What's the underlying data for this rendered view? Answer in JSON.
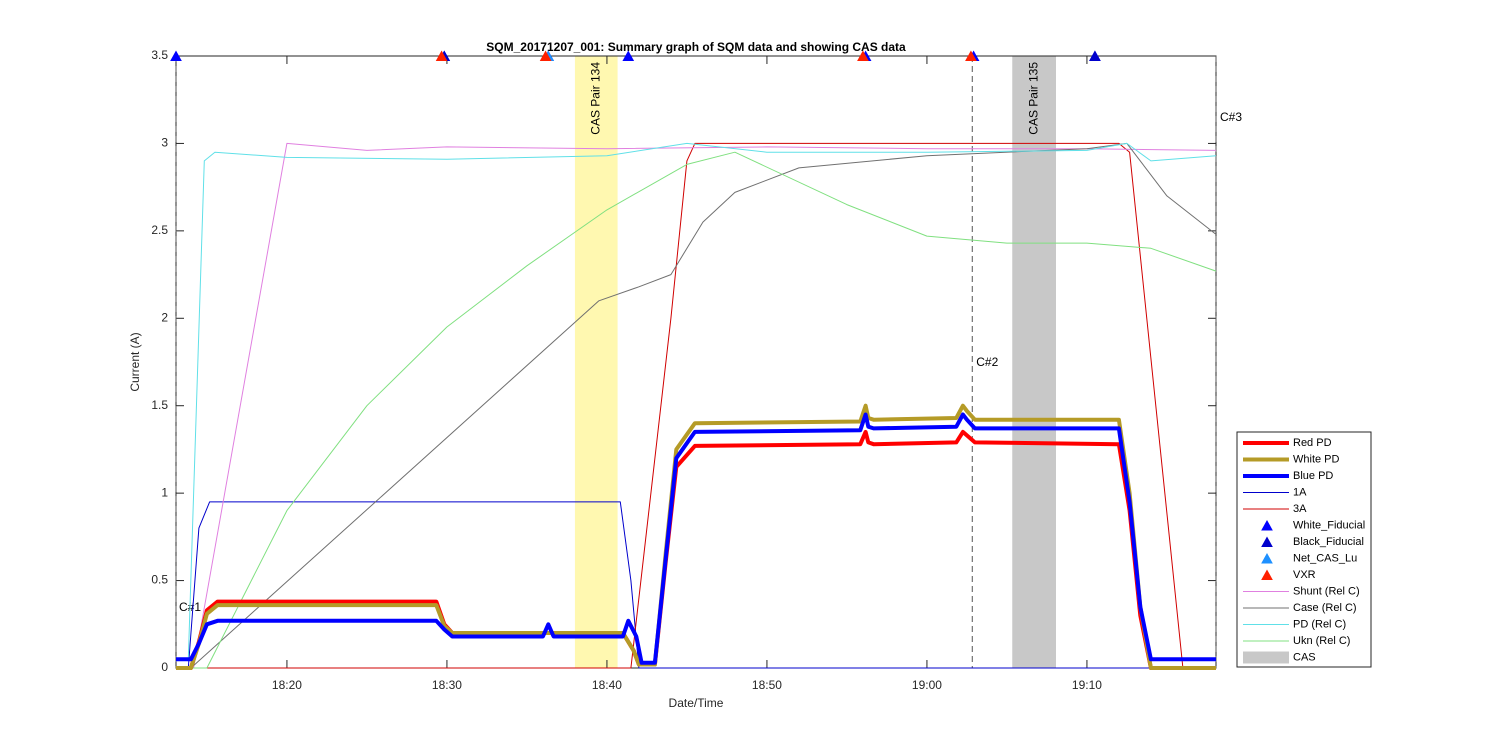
{
  "chart_data": {
    "type": "line",
    "title": "SQM_20171207_001: Summary graph of SQM data and showing CAS data",
    "x_label": "Date/Time",
    "y_label": "Current (A)",
    "xlim": [
      "18:13:04",
      "19:18:04"
    ],
    "xticks": [
      "18:20",
      "18:30",
      "18:40",
      "18:50",
      "19:00",
      "19:10"
    ],
    "ylim": [
      0,
      3.5
    ],
    "yticks": [
      0,
      0.5,
      1,
      1.5,
      2,
      2.5,
      3,
      3.5
    ],
    "series": [
      {
        "name": "Red PD",
        "color": "#ff0000",
        "width": 4,
        "x": [
          "18:13:04",
          "18:14:00",
          "18:14:30",
          "18:15:00",
          "18:15:40",
          "18:29:20",
          "18:29:50",
          "18:30:20",
          "18:41:00",
          "18:41:40",
          "18:42:00",
          "18:43:00",
          "18:43:40",
          "18:44:20",
          "18:45:30",
          "18:55:50",
          "18:56:10",
          "18:56:20",
          "18:56:40",
          "19:01:50",
          "19:02:15",
          "19:02:30",
          "19:03:00",
          "19:12:00",
          "19:12:40",
          "19:13:20",
          "19:14:00",
          "19:18:04"
        ],
        "values": [
          0,
          0,
          0.15,
          0.33,
          0.38,
          0.38,
          0.25,
          0.2,
          0.2,
          0.1,
          0.02,
          0.02,
          0.6,
          1.15,
          1.27,
          1.28,
          1.35,
          1.29,
          1.28,
          1.29,
          1.35,
          1.33,
          1.29,
          1.28,
          0.9,
          0.3,
          0,
          0
        ]
      },
      {
        "name": "White PD",
        "color": "#b59b27",
        "width": 4,
        "x": [
          "18:13:04",
          "18:14:00",
          "18:14:30",
          "18:15:00",
          "18:15:40",
          "18:29:20",
          "18:29:50",
          "18:30:20",
          "18:41:00",
          "18:41:40",
          "18:42:00",
          "18:43:00",
          "18:43:40",
          "18:44:20",
          "18:45:30",
          "18:55:50",
          "18:56:10",
          "18:56:20",
          "18:56:40",
          "19:01:50",
          "19:02:15",
          "19:02:30",
          "19:03:00",
          "19:12:00",
          "19:12:40",
          "19:13:20",
          "19:14:00",
          "19:18:04"
        ],
        "values": [
          0,
          0,
          0.14,
          0.31,
          0.36,
          0.36,
          0.24,
          0.2,
          0.2,
          0.1,
          0.02,
          0.02,
          0.65,
          1.25,
          1.4,
          1.41,
          1.5,
          1.43,
          1.42,
          1.43,
          1.5,
          1.47,
          1.42,
          1.42,
          1,
          0.35,
          0,
          0
        ]
      },
      {
        "name": "Blue PD",
        "color": "#0000ff",
        "width": 4,
        "x": [
          "18:13:04",
          "18:14:00",
          "18:14:30",
          "18:15:00",
          "18:15:40",
          "18:29:20",
          "18:29:50",
          "18:30:20",
          "18:36:00",
          "18:36:20",
          "18:36:40",
          "18:41:00",
          "18:41:20",
          "18:41:50",
          "18:42:10",
          "18:43:00",
          "18:43:40",
          "18:44:20",
          "18:45:30",
          "18:55:50",
          "18:56:10",
          "18:56:20",
          "18:56:40",
          "19:01:50",
          "19:02:15",
          "19:02:30",
          "19:03:00",
          "19:12:00",
          "19:12:40",
          "19:13:20",
          "19:14:00",
          "19:18:04"
        ],
        "values": [
          0.05,
          0.05,
          0.14,
          0.25,
          0.27,
          0.27,
          0.22,
          0.18,
          0.18,
          0.25,
          0.18,
          0.18,
          0.27,
          0.18,
          0.03,
          0.03,
          0.62,
          1.2,
          1.35,
          1.36,
          1.45,
          1.38,
          1.37,
          1.38,
          1.45,
          1.42,
          1.37,
          1.37,
          0.95,
          0.35,
          0.05,
          0.05
        ]
      },
      {
        "name": "1A",
        "color": "#0000cc",
        "width": 1,
        "x": [
          "18:13:04",
          "18:13:50",
          "18:14:30",
          "18:15:10",
          "18:40:50",
          "18:41:30",
          "18:42:00",
          "19:18:04"
        ],
        "values": [
          0,
          0,
          0.8,
          0.95,
          0.95,
          0.5,
          0,
          0
        ]
      },
      {
        "name": "3A",
        "color": "#d00000",
        "width": 1,
        "x": [
          "18:13:04",
          "18:41:30",
          "18:44:00",
          "18:45:00",
          "18:45:30",
          "19:12:00",
          "19:12:40",
          "19:16:00",
          "19:18:04"
        ],
        "values": [
          0,
          0,
          2,
          2.9,
          3,
          3,
          2.95,
          0,
          0
        ]
      },
      {
        "name": "White_Fiducial",
        "type": "scatter",
        "color": "#0000ff",
        "x": [
          "18:13:04",
          "18:29:50",
          "18:41:20",
          "18:56:10",
          "19:02:55",
          "19:10:30"
        ],
        "values": [
          3.5,
          3.5,
          3.5,
          3.5,
          3.5,
          3.5
        ]
      },
      {
        "name": "Black_Fiducial",
        "type": "scatter",
        "color": "#0000cc",
        "x": [
          "18:29:50",
          "18:36:20",
          "19:10:30"
        ],
        "values": [
          3.5,
          3.5,
          3.5
        ]
      },
      {
        "name": "Net_CAS_Lu",
        "type": "scatter",
        "color": "#1e90ff",
        "x": [
          "18:36:20"
        ],
        "values": [
          3.5
        ]
      },
      {
        "name": "VXR",
        "type": "scatter",
        "color": "#ff2000",
        "x": [
          "18:29:40",
          "18:36:10",
          "18:56:00",
          "19:02:45"
        ],
        "values": [
          3.5,
          3.5,
          3.5,
          3.5
        ]
      },
      {
        "name": "Shunt (Rel C)",
        "color": "#e080e0",
        "width": 1,
        "x": [
          "18:13:04",
          "18:14:10",
          "18:20:00",
          "18:25:00",
          "18:30:00",
          "18:40:00",
          "18:50:00",
          "19:00:00",
          "19:10:00",
          "19:18:04"
        ],
        "values": [
          0,
          0,
          3,
          2.96,
          2.98,
          2.97,
          2.98,
          2.97,
          2.97,
          2.96
        ]
      },
      {
        "name": "Case (Rel C)",
        "color": "#707070",
        "width": 1,
        "x": [
          "18:13:04",
          "18:14:00",
          "18:39:30",
          "18:42:00",
          "18:44:00",
          "18:46:00",
          "18:48:00",
          "18:52:00",
          "19:00:00",
          "19:10:00",
          "19:12:30",
          "19:15:00",
          "19:18:04"
        ],
        "values": [
          0,
          0,
          2.1,
          2.18,
          2.25,
          2.55,
          2.72,
          2.86,
          2.93,
          2.97,
          3,
          2.7,
          2.48
        ]
      },
      {
        "name": "PD (Rel C)",
        "color": "#60e0e8",
        "width": 1,
        "x": [
          "18:13:04",
          "18:13:50",
          "18:14:50",
          "18:15:30",
          "18:20:00",
          "18:30:00",
          "18:40:00",
          "18:45:00",
          "18:50:00",
          "19:00:00",
          "19:10:00",
          "19:12:30",
          "19:14:00",
          "19:18:04"
        ],
        "values": [
          0.05,
          0.05,
          2.9,
          2.95,
          2.92,
          2.91,
          2.93,
          3,
          2.95,
          2.95,
          2.96,
          3,
          2.9,
          2.93
        ]
      },
      {
        "name": "Ukn (Rel C)",
        "color": "#80e080",
        "width": 1,
        "x": [
          "18:13:04",
          "18:15:00",
          "18:20:00",
          "18:25:00",
          "18:30:00",
          "18:35:00",
          "18:40:00",
          "18:45:00",
          "18:48:00",
          "18:55:00",
          "19:00:00",
          "19:05:00",
          "19:10:00",
          "19:14:00",
          "19:18:04"
        ],
        "values": [
          0,
          0,
          0.9,
          1.5,
          1.95,
          2.3,
          2.62,
          2.88,
          2.95,
          2.65,
          2.47,
          2.43,
          2.43,
          2.4,
          2.27
        ]
      }
    ],
    "cas": {
      "name": "CAS",
      "color": "#c8c8c8",
      "spans": [
        {
          "label": "CAS Pair 134",
          "x": [
            "18:38:00",
            "18:40:40"
          ],
          "color": "#fff8b0"
        },
        {
          "label": "CAS Pair 135",
          "x": [
            "19:05:20",
            "19:08:04"
          ],
          "color": "#c8c8c8"
        }
      ]
    },
    "vlines": [
      {
        "x": "18:13:04",
        "label": "C#1"
      },
      {
        "x": "19:02:50",
        "label": "C#2"
      },
      {
        "x": "19:18:04",
        "label": "C#3"
      }
    ]
  }
}
